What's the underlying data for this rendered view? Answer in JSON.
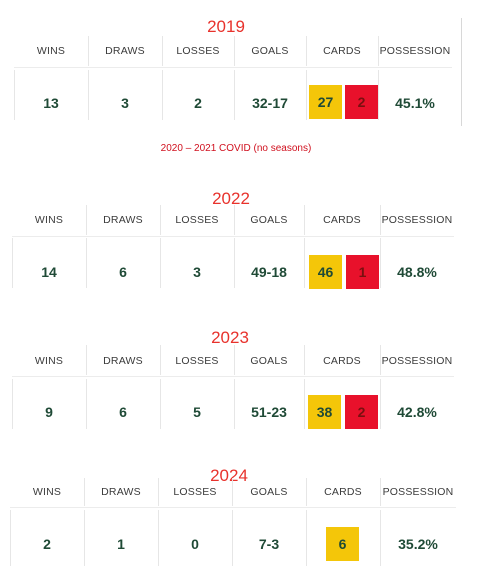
{
  "headers": [
    "WINS",
    "DRAWS",
    "LOSSES",
    "GOALS",
    "CARDS",
    "POSSESSION"
  ],
  "covid_note": "2020 – 2021 COVID (no seasons)",
  "seasons": [
    {
      "year": "2019",
      "wins": "13",
      "draws": "3",
      "losses": "2",
      "goals": "32-17",
      "yellow_cards": "27",
      "red_cards": "2",
      "possession": "45.1%"
    },
    {
      "year": "2022",
      "wins": "14",
      "draws": "6",
      "losses": "3",
      "goals": "49-18",
      "yellow_cards": "46",
      "red_cards": "1",
      "possession": "48.8%"
    },
    {
      "year": "2023",
      "wins": "9",
      "draws": "6",
      "losses": "5",
      "goals": "51-23",
      "yellow_cards": "38",
      "red_cards": "2",
      "possession": "42.8%"
    },
    {
      "year": "2024",
      "wins": "2",
      "draws": "1",
      "losses": "0",
      "goals": "7-3",
      "yellow_cards": "6",
      "red_cards": "",
      "possession": "35.2%"
    }
  ],
  "colors": {
    "year": "#e8322c",
    "values": "#1f4a36",
    "yellow_card": "#f4c609",
    "red_card": "#e8112b",
    "covid_note": "#d0101e"
  }
}
